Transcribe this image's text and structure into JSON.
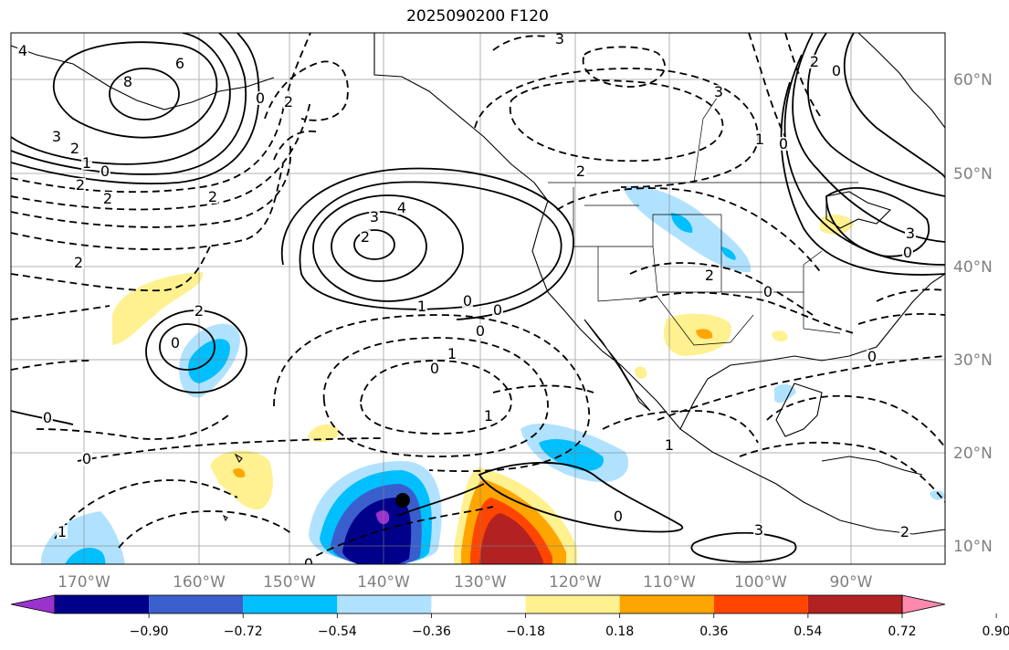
{
  "title": "2025090200 F120",
  "lon_labels": [
    "170°W",
    "160°W",
    "150°W",
    "140°W",
    "130°W",
    "120°W",
    "110°W",
    "100°W",
    "90°W"
  ],
  "lat_labels": [
    "60°N",
    "50°N",
    "40°N",
    "30°N",
    "20°N",
    "10°N"
  ],
  "colorbar": {
    "colors": [
      "#9a32cd",
      "#00008b",
      "#3a5fcd",
      "#00bfff",
      "#b0e2ff",
      "#ffffff",
      "#fff090",
      "#ffa500",
      "#ff4500",
      "#b22222",
      "#ff89ad"
    ],
    "tick_labels": [
      "−0.90",
      "−0.72",
      "−0.54",
      "−0.36",
      "−0.18",
      "0.18",
      "0.36",
      "0.54",
      "0.72",
      "0.90"
    ]
  },
  "contour_labels": [
    "4",
    "6",
    "8",
    "3",
    "2",
    "1",
    "0",
    "2",
    "2",
    "3",
    "4",
    "2",
    "1",
    "0",
    "0",
    "2",
    "0",
    "2",
    "2",
    "1",
    "0",
    "0",
    "0",
    "0",
    "1",
    "1",
    "0",
    "2",
    "2",
    "3",
    "0",
    "2",
    "0",
    "3",
    "1",
    "0",
    "0",
    "3",
    "2",
    "0",
    "1",
    "0",
    "2",
    "0",
    "2",
    "3"
  ]
}
